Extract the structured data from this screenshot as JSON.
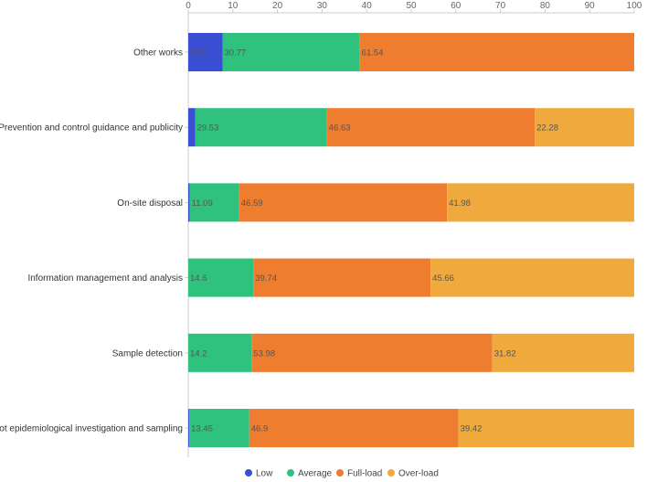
{
  "chart_data": {
    "type": "bar",
    "orientation": "horizontal",
    "stacked": true,
    "xlim": [
      0,
      100
    ],
    "x_ticks": [
      0,
      10,
      20,
      30,
      40,
      50,
      60,
      70,
      80,
      90,
      100
    ],
    "x_axis_position": "top",
    "grid": false,
    "legend_position": "bottom-center",
    "categories": [
      "Other works",
      "Prevention and control guidance and publicity",
      "On-site disposal",
      "Information management and analysis",
      "Sample detection",
      "Spot epidemiological investigation and sampling"
    ],
    "series": [
      {
        "name": "Low",
        "color": "#3b4fd4",
        "values": [
          7.69,
          1.55,
          0.34,
          0.0,
          0.0,
          0.23
        ],
        "labels": [
          "7.69",
          "",
          "",
          "",
          "",
          ""
        ]
      },
      {
        "name": "Average",
        "color": "#2ec27e",
        "values": [
          30.77,
          29.53,
          11.09,
          14.6,
          14.2,
          13.45
        ],
        "labels": [
          "30.77",
          "29.53",
          "11.09",
          "14.6",
          "14.2",
          "13.45"
        ]
      },
      {
        "name": "Full-load",
        "color": "#ee7d2f",
        "values": [
          61.54,
          46.63,
          46.59,
          39.74,
          53.98,
          46.9
        ],
        "labels": [
          "61.54",
          "46.63",
          "46.59",
          "39.74",
          "53.98",
          "46.9"
        ]
      },
      {
        "name": "Over-load",
        "color": "#f0a93c",
        "values": [
          0,
          22.28,
          41.98,
          45.66,
          31.82,
          39.42
        ],
        "labels": [
          "",
          "22.28",
          "41.98",
          "45.66",
          "31.82",
          "39.42"
        ]
      }
    ]
  }
}
